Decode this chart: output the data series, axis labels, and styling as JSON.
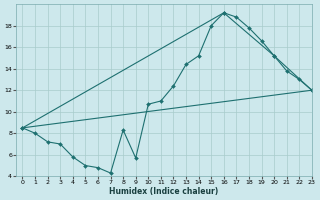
{
  "xlabel": "Humidex (Indice chaleur)",
  "bg_color": "#cde8ec",
  "grid_color": "#a8cccc",
  "line_color": "#1e7070",
  "line1_x": [
    0,
    1,
    2,
    3,
    4,
    5,
    6,
    7,
    8,
    9,
    10,
    11,
    12,
    13,
    14,
    15,
    16,
    17,
    18,
    19,
    20,
    21,
    22,
    23
  ],
  "line1_y": [
    8.5,
    8.0,
    7.2,
    7.0,
    5.8,
    5.0,
    4.8,
    4.3,
    8.3,
    5.7,
    10.7,
    11.0,
    12.4,
    14.4,
    15.2,
    18.0,
    19.2,
    18.8,
    17.8,
    16.6,
    15.2,
    13.8,
    13.0,
    12.0
  ],
  "line2_x": [
    0,
    23
  ],
  "line2_y": [
    8.5,
    12.0
  ],
  "line3_x": [
    0,
    16,
    20,
    23
  ],
  "line3_y": [
    8.5,
    19.2,
    15.2,
    12.0
  ],
  "ylim": [
    4,
    20
  ],
  "xlim": [
    -0.5,
    23
  ],
  "yticks": [
    4,
    6,
    8,
    10,
    12,
    14,
    16,
    18
  ],
  "xticks": [
    0,
    1,
    2,
    3,
    4,
    5,
    6,
    7,
    8,
    9,
    10,
    11,
    12,
    13,
    14,
    15,
    16,
    17,
    18,
    19,
    20,
    21,
    22,
    23
  ]
}
